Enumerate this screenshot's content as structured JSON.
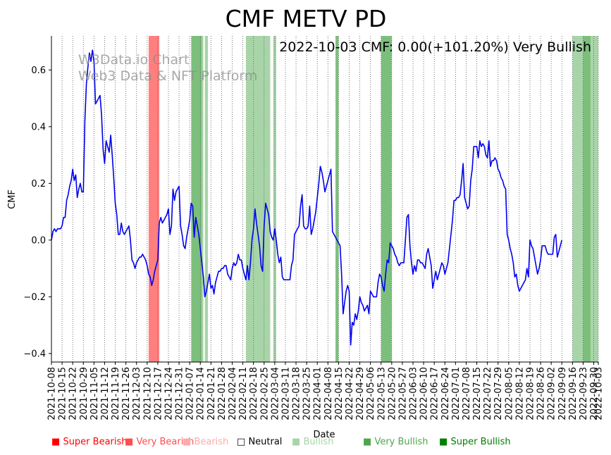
{
  "chart_data": {
    "type": "line",
    "title": "CMF METV PD",
    "annotation": "2022-10-03 CMF: 0.00(+101.20%) Very Bullish",
    "watermark": [
      "W3Data.io Chart",
      "Web3 Data & NFT Platform"
    ],
    "xlabel": "Date",
    "ylabel": "CMF",
    "ylim": [
      -0.43,
      0.72
    ],
    "yticks": [
      -0.4,
      -0.2,
      0.0,
      0.2,
      0.4,
      0.6
    ],
    "ytick_labels": [
      "−0.4",
      "−0.2",
      "0.0",
      "0.2",
      "0.4",
      "0.6"
    ],
    "x_start": "2021-10-08",
    "x_end": "2022-10-03",
    "xtick_labels": [
      "2021-10-08",
      "2021-10-15",
      "2021-10-22",
      "2021-10-29",
      "2021-11-05",
      "2021-11-12",
      "2021-11-19",
      "2021-11-26",
      "2021-12-03",
      "2021-12-10",
      "2021-12-17",
      "2021-12-24",
      "2021-12-31",
      "2022-01-07",
      "2022-01-14",
      "2022-01-21",
      "2022-01-28",
      "2022-02-04",
      "2022-02-11",
      "2022-02-18",
      "2022-02-25",
      "2022-03-04",
      "2022-03-11",
      "2022-03-18",
      "2022-03-25",
      "2022-04-01",
      "2022-04-08",
      "2022-04-15",
      "2022-04-22",
      "2022-04-29",
      "2022-05-06",
      "2022-05-13",
      "2022-05-20",
      "2022-05-27",
      "2022-06-03",
      "2022-06-10",
      "2022-06-17",
      "2022-06-24",
      "2022-07-01",
      "2022-07-08",
      "2022-07-15",
      "2022-07-22",
      "2022-07-29",
      "2022-08-05",
      "2022-08-12",
      "2022-08-19",
      "2022-08-26",
      "2022-09-02",
      "2022-09-09",
      "2022-09-16",
      "2022-09-23",
      "2022-09-30",
      "2022-10-03"
    ],
    "bands": [
      {
        "start": "2021-12-11",
        "end": "2021-12-18",
        "signal": "Very Bearish"
      },
      {
        "start": "2022-01-08",
        "end": "2022-01-15",
        "signal": "Very Bullish"
      },
      {
        "start": "2022-01-15",
        "end": "2022-01-16",
        "signal": "Bullish"
      },
      {
        "start": "2022-01-17",
        "end": "2022-01-19",
        "signal": "Bullish"
      },
      {
        "start": "2022-02-13",
        "end": "2022-03-01",
        "signal": "Bullish"
      },
      {
        "start": "2022-03-03",
        "end": "2022-03-05",
        "signal": "Bullish"
      },
      {
        "start": "2022-04-13",
        "end": "2022-04-15",
        "signal": "Very Bullish"
      },
      {
        "start": "2022-05-13",
        "end": "2022-05-20",
        "signal": "Very Bullish"
      },
      {
        "start": "2022-09-16",
        "end": "2022-09-23",
        "signal": "Bullish"
      },
      {
        "start": "2022-09-23",
        "end": "2022-09-28",
        "signal": "Very Bullish"
      },
      {
        "start": "2022-09-28",
        "end": "2022-10-03",
        "signal": "Bullish"
      }
    ],
    "series": [
      {
        "name": "CMF",
        "color": "#0000ee",
        "start_date": "2021-10-08",
        "step_days": 1,
        "values": [
          0.0,
          0.03,
          0.04,
          0.03,
          0.04,
          0.04,
          0.04,
          0.05,
          0.08,
          0.08,
          0.14,
          0.16,
          0.19,
          0.21,
          0.25,
          0.21,
          0.23,
          0.15,
          0.18,
          0.2,
          0.17,
          0.17,
          0.42,
          0.55,
          0.61,
          0.66,
          0.63,
          0.67,
          0.63,
          0.48,
          0.49,
          0.5,
          0.51,
          0.44,
          0.32,
          0.27,
          0.35,
          0.33,
          0.31,
          0.37,
          0.3,
          0.22,
          0.13,
          0.09,
          0.02,
          0.02,
          0.06,
          0.03,
          0.02,
          0.03,
          0.04,
          0.05,
          0.0,
          -0.07,
          -0.08,
          -0.1,
          -0.08,
          -0.07,
          -0.06,
          -0.06,
          -0.05,
          -0.06,
          -0.07,
          -0.09,
          -0.12,
          -0.13,
          -0.16,
          -0.14,
          -0.11,
          -0.09,
          -0.07,
          0.06,
          0.08,
          0.06,
          0.07,
          0.08,
          0.09,
          0.11,
          0.02,
          0.05,
          0.18,
          0.14,
          0.17,
          0.18,
          0.19,
          0.05,
          0.02,
          -0.02,
          -0.03,
          0.01,
          0.04,
          0.07,
          0.13,
          0.12,
          0.01,
          0.08,
          0.05,
          0.02,
          -0.03,
          -0.08,
          -0.13,
          -0.2,
          -0.18,
          -0.15,
          -0.12,
          -0.17,
          -0.16,
          -0.19,
          -0.15,
          -0.13,
          -0.11,
          -0.11,
          -0.1,
          -0.1,
          -0.09,
          -0.09,
          -0.12,
          -0.13,
          -0.14,
          -0.1,
          -0.08,
          -0.09,
          -0.08,
          -0.05,
          -0.07,
          -0.07,
          -0.1,
          -0.12,
          -0.14,
          -0.09,
          -0.14,
          -0.08,
          0.0,
          0.04,
          0.11,
          0.06,
          0.02,
          -0.02,
          -0.09,
          -0.11,
          0.05,
          0.13,
          0.11,
          0.09,
          0.03,
          0.01,
          0.0,
          0.04,
          0.0,
          -0.05,
          -0.08,
          -0.06,
          -0.13,
          -0.14,
          -0.14,
          -0.14,
          -0.14,
          -0.14,
          -0.09,
          -0.07,
          0.02,
          0.03,
          0.04,
          0.05,
          0.12,
          0.16,
          0.05,
          0.04,
          0.04,
          0.05,
          0.12,
          0.02,
          0.04,
          0.07,
          0.1,
          0.15,
          0.2,
          0.26,
          0.24,
          0.21,
          0.17,
          0.19,
          0.21,
          0.23,
          0.25,
          0.03,
          0.02,
          0.01,
          0.0,
          -0.01,
          -0.02,
          -0.12,
          -0.26,
          -0.22,
          -0.18,
          -0.16,
          -0.18,
          -0.37,
          -0.29,
          -0.3,
          -0.26,
          -0.28,
          -0.25,
          -0.2,
          -0.22,
          -0.23,
          -0.25,
          -0.24,
          -0.23,
          -0.26,
          -0.18,
          -0.19,
          -0.2,
          -0.2,
          -0.2,
          -0.15,
          -0.12,
          -0.13,
          -0.16,
          -0.18,
          -0.12,
          -0.07,
          -0.08,
          -0.01,
          -0.02,
          -0.03,
          -0.05,
          -0.06,
          -0.08,
          -0.09,
          -0.08,
          -0.08,
          -0.08,
          0.0,
          0.08,
          0.09,
          -0.02,
          -0.08,
          -0.12,
          -0.09,
          -0.11,
          -0.07,
          -0.07,
          -0.08,
          -0.08,
          -0.09,
          -0.1,
          -0.05,
          -0.03,
          -0.06,
          -0.09,
          -0.17,
          -0.14,
          -0.11,
          -0.14,
          -0.12,
          -0.1,
          -0.08,
          -0.09,
          -0.12,
          -0.1,
          -0.08,
          -0.03,
          0.02,
          0.07,
          0.14,
          0.14,
          0.15,
          0.15,
          0.16,
          0.21,
          0.27,
          0.15,
          0.13,
          0.11,
          0.12,
          0.21,
          0.25,
          0.33,
          0.33,
          0.33,
          0.29,
          0.35,
          0.33,
          0.34,
          0.33,
          0.3,
          0.29,
          0.35,
          0.26,
          0.28,
          0.28,
          0.29,
          0.28,
          0.25,
          0.24,
          0.22,
          0.21,
          0.19,
          0.18,
          0.02,
          0.0,
          -0.03,
          -0.05,
          -0.08,
          -0.13,
          -0.12,
          -0.16,
          -0.18,
          -0.17,
          -0.16,
          -0.15,
          -0.14,
          -0.1,
          -0.13,
          0.0,
          -0.02,
          -0.03,
          -0.06,
          -0.09,
          -0.12,
          -0.1,
          -0.07,
          -0.02,
          -0.02,
          -0.02,
          -0.04,
          -0.05,
          -0.05,
          -0.05,
          -0.05,
          0.01,
          0.02,
          -0.06,
          -0.04,
          -0.02,
          0.0
        ]
      }
    ],
    "legend": [
      {
        "label": "Super Bearish",
        "color": "#ff0000",
        "square": "■"
      },
      {
        "label": "Very Bearish",
        "color": "#ff4d4d",
        "square": "■"
      },
      {
        "label": "Bearish",
        "color": "#ffaaaa",
        "square": "■"
      },
      {
        "label": "Neutral",
        "color": "#000000",
        "square": "□"
      },
      {
        "label": "Bullish",
        "color": "#a8d5a8",
        "square": "■"
      },
      {
        "label": "Very Bullish",
        "color": "#4ca64c",
        "square": "■"
      },
      {
        "label": "Super Bullish",
        "color": "#008000",
        "square": "■"
      }
    ],
    "band_colors": {
      "Super Bearish": "#ff0000",
      "Very Bearish": "#ff7f7f",
      "Bearish": "#ffc0c0",
      "Bullish": "#a8d5a8",
      "Very Bullish": "#7cbf7c",
      "Super Bullish": "#008000"
    }
  }
}
